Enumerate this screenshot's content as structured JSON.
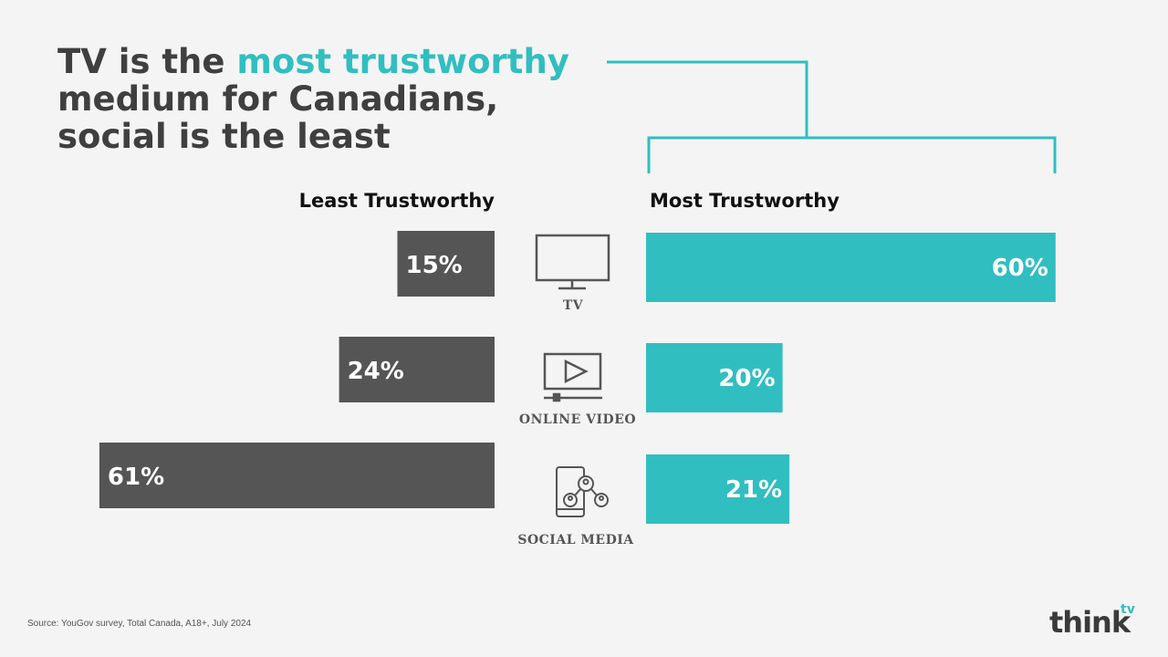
{
  "title": {
    "part1": "TV is the ",
    "accent": "most trustworthy",
    "part2": "medium for Canadians,",
    "part3": "social is the least"
  },
  "colors": {
    "accent": "#31bec1",
    "least_bar": "#555555",
    "title": "#3f3f3f",
    "background": "#f4f4f4"
  },
  "chart_data": {
    "type": "bar",
    "orientation": "horizontal-diverging",
    "categories": [
      "TV",
      "ONLINE VIDEO",
      "SOCIAL MEDIA"
    ],
    "category_icons": [
      "tv-monitor-icon",
      "online-video-icon",
      "social-media-phone-icon"
    ],
    "series": [
      {
        "name": "Least Trustworthy",
        "values": [
          15,
          24,
          61
        ],
        "labels": [
          "15%",
          "24%",
          "61%"
        ],
        "color": "#555555"
      },
      {
        "name": "Most Trustworthy",
        "values": [
          60,
          20,
          21
        ],
        "labels": [
          "60%",
          "20%",
          "21%"
        ],
        "color": "#31bec1"
      }
    ],
    "unit": "%"
  },
  "footer": {
    "source": "Source: YouGov survey, Total Canada, A18+, July 2024",
    "logo_text": "think",
    "logo_superscript": "tv"
  }
}
